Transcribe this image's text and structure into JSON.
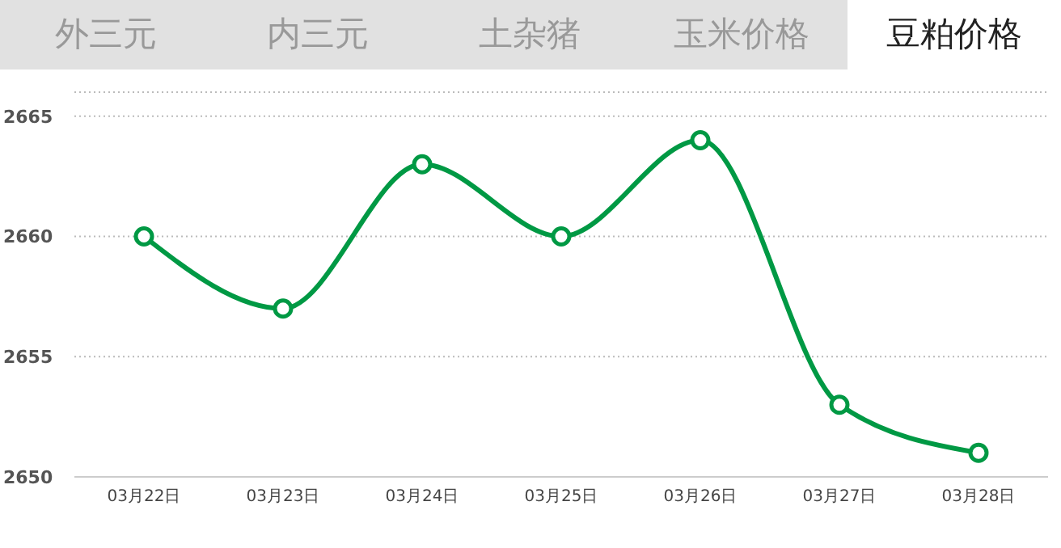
{
  "chart_data": {
    "type": "line",
    "annotations": [
      "外三元",
      "内三元",
      "土杂猪",
      "玉米价格",
      "豆粕价格"
    ],
    "categories": [
      "03月22日",
      "03月23日",
      "03月24日",
      "03月25日",
      "03月26日",
      "03月27日",
      "03月28日"
    ],
    "series": [
      {
        "color": "#009944",
        "values": [
          2660,
          2657,
          2663,
          2660,
          2664,
          2653,
          2651
        ]
      }
    ],
    "ylim": [
      2650,
      2666
    ],
    "yticks": [
      2650,
      2655,
      2660,
      2665
    ],
    "grid": "y",
    "legend": false,
    "marker": "circle",
    "line_style": "solid"
  }
}
